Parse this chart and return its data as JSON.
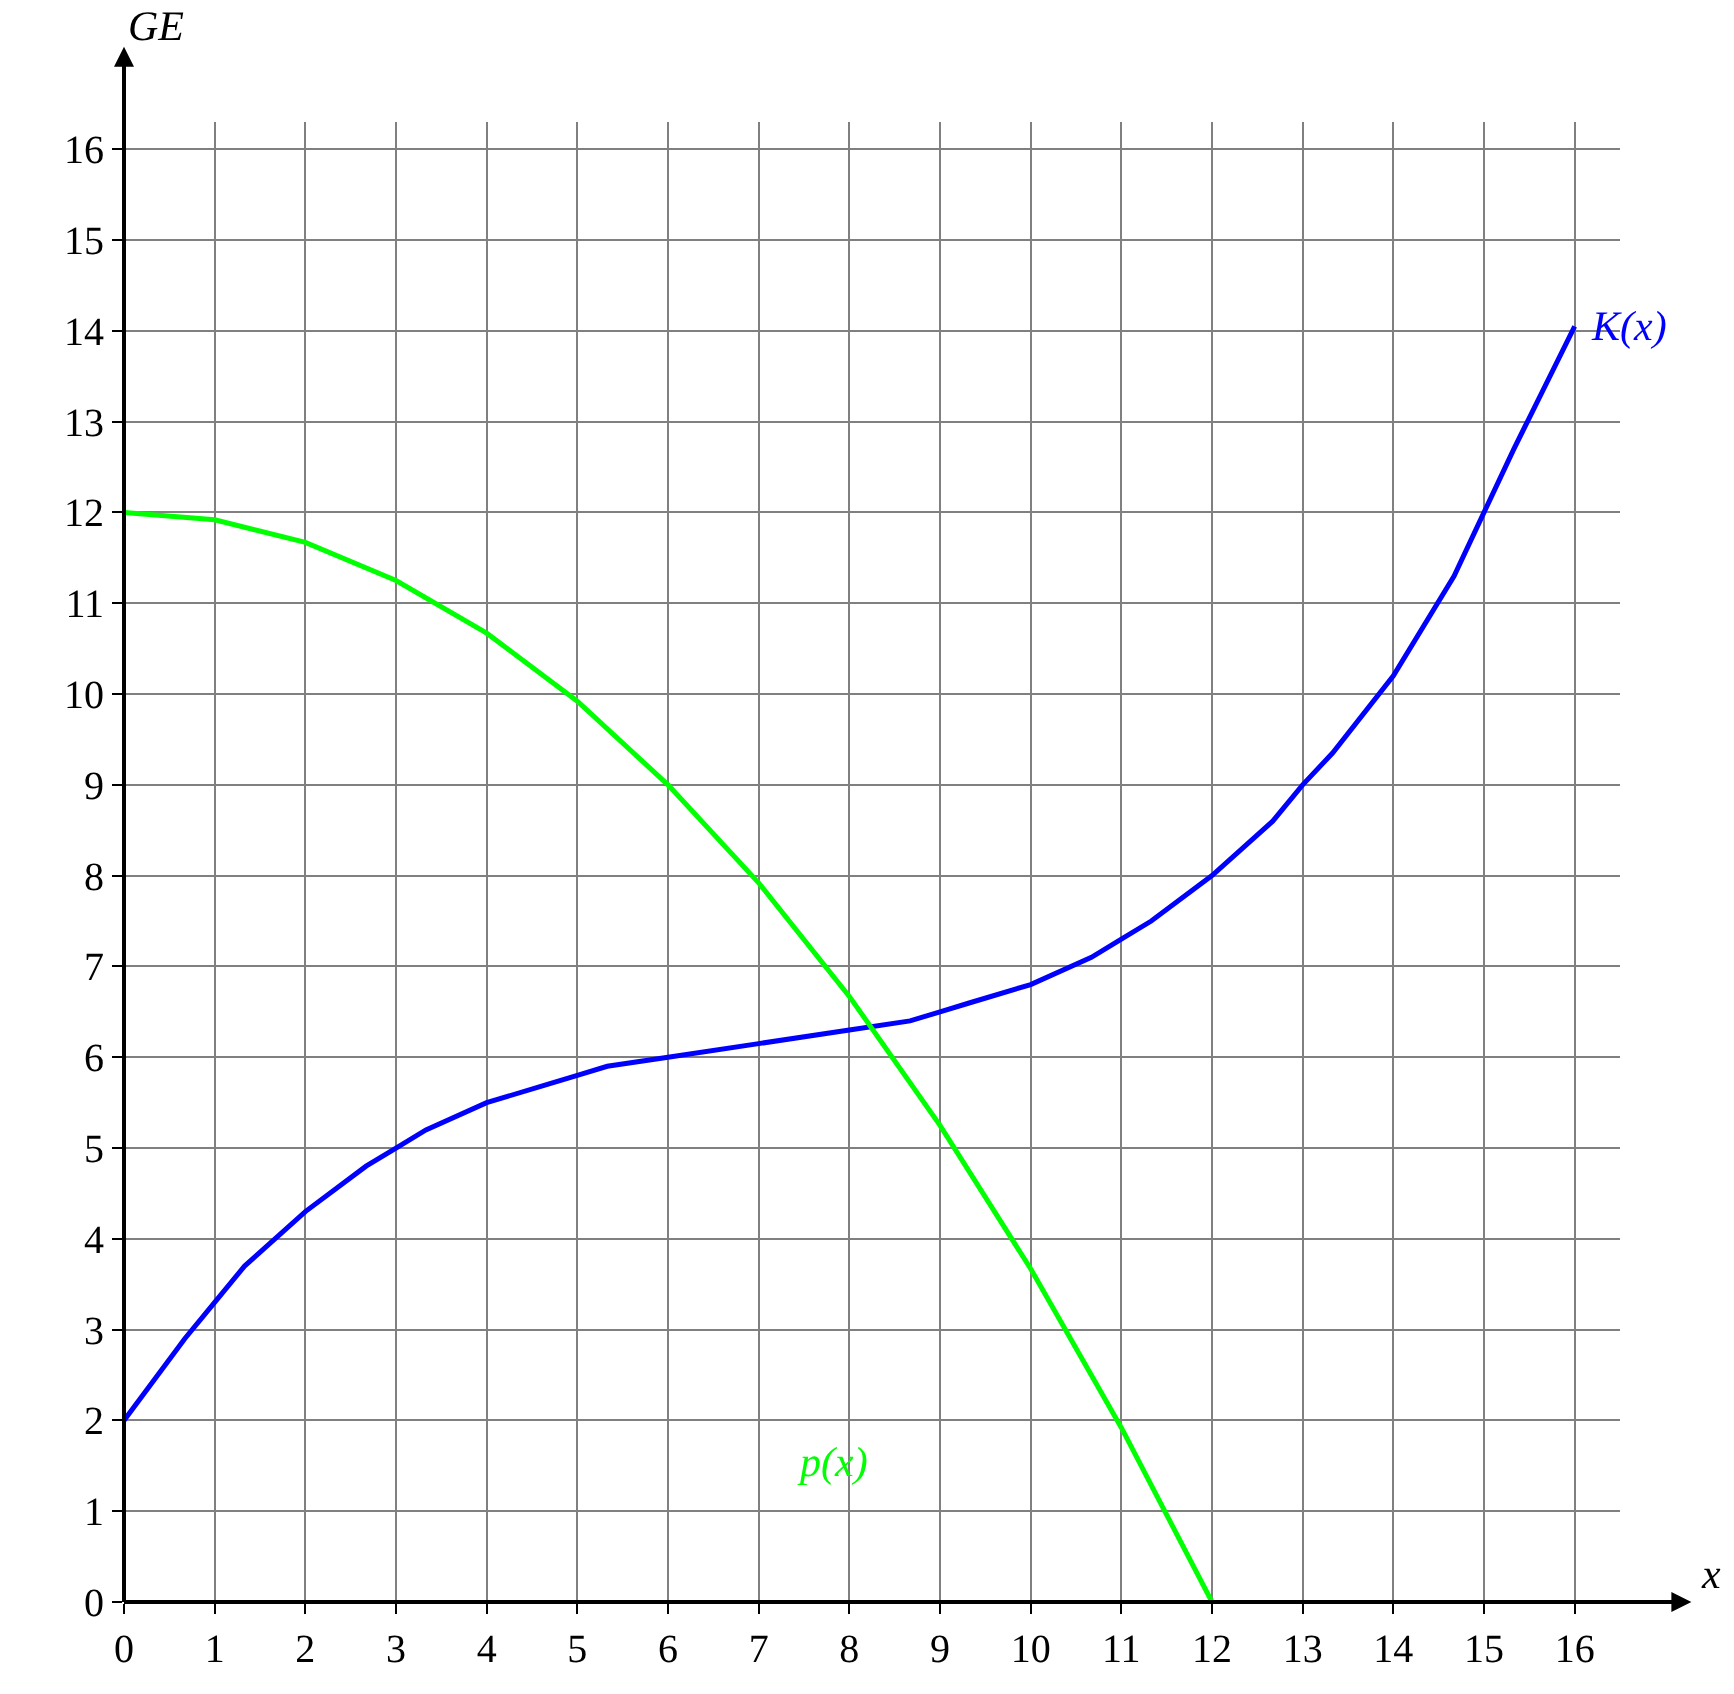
{
  "chart_data": {
    "type": "line",
    "xlabel": "x",
    "ylabel": "GE",
    "series": [
      {
        "name": "K(x)",
        "color": "#0000ff",
        "x": [
          0,
          0.67,
          1,
          1.33,
          2,
          2.67,
          3,
          3.33,
          4,
          4.67,
          5,
          5.33,
          6,
          7,
          8,
          8.67,
          9,
          9.33,
          10,
          10.67,
          11,
          11.33,
          12,
          12.67,
          13,
          13.33,
          14,
          14.67,
          15,
          15.33,
          16
        ],
        "values": [
          2,
          2.9,
          3.3,
          3.7,
          4.3,
          4.8,
          5.0,
          5.2,
          5.5,
          5.7,
          5.8,
          5.9,
          6.0,
          6.15,
          6.3,
          6.4,
          6.5,
          6.6,
          6.8,
          7.1,
          7.3,
          7.5,
          8.0,
          8.6,
          9.0,
          9.35,
          10.2,
          11.3,
          12.0,
          12.7,
          14.05
        ]
      },
      {
        "name": "p(x)",
        "color": "#00ff00",
        "x": [
          0,
          1,
          2,
          3,
          4,
          5,
          6,
          7,
          8,
          9,
          10,
          11,
          12
        ],
        "values": [
          12,
          11.92,
          11.67,
          11.25,
          10.67,
          9.92,
          9,
          7.92,
          6.67,
          5.25,
          3.67,
          1.92,
          0
        ]
      }
    ],
    "xlim": [
      0,
      16.5
    ],
    "ylim": [
      0,
      16.3
    ],
    "xticks": [
      0,
      1,
      2,
      3,
      4,
      5,
      6,
      7,
      8,
      9,
      10,
      11,
      12,
      13,
      14,
      15,
      16
    ],
    "yticks": [
      0,
      1,
      2,
      3,
      4,
      5,
      6,
      7,
      8,
      9,
      10,
      11,
      12,
      13,
      14,
      15,
      16
    ],
    "grid": true,
    "legend": false,
    "marker": "none",
    "line_style": "solid"
  }
}
